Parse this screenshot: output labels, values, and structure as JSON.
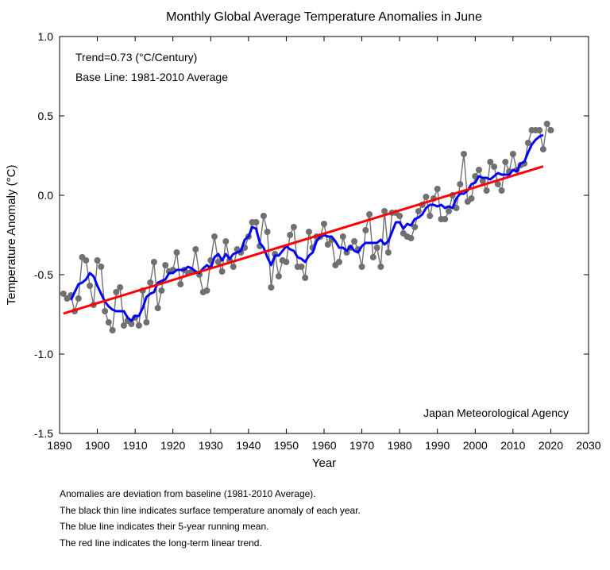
{
  "chart_data": {
    "type": "line",
    "title": "Monthly Global Average Temperature Anomalies in June",
    "xlabel": "Year",
    "ylabel": "Temperature Anomaly (°C)",
    "xlim": [
      1890,
      2030
    ],
    "ylim": [
      -1.5,
      1.0
    ],
    "x_ticks": [
      1890,
      1900,
      1910,
      1920,
      1930,
      1940,
      1950,
      1960,
      1970,
      1980,
      1990,
      2000,
      2010,
      2020,
      2030
    ],
    "y_ticks": [
      -1.5,
      -1.0,
      -0.5,
      0.0,
      0.5,
      1.0
    ],
    "x_tick_labels": [
      "1890",
      "1900",
      "1910",
      "1920",
      "1930",
      "1940",
      "1950",
      "1960",
      "1970",
      "1980",
      "1990",
      "2000",
      "2010",
      "2020",
      "2030"
    ],
    "y_tick_labels": [
      "-1.5",
      "-1.0",
      "-0.5",
      "0.0",
      "0.5",
      "1.0"
    ],
    "grid": false,
    "annotations": [
      "Trend=0.73 (°C/Century)",
      "Base Line: 1981-2010 Average"
    ],
    "source": "Japan Meteorological Agency",
    "colors": {
      "annual": "#707070",
      "running_mean": "#0000ff",
      "trend": "#ff0000"
    },
    "series": [
      {
        "x": [
          1891,
          1892,
          1893,
          1894,
          1895,
          1896,
          1897,
          1898,
          1899,
          1900,
          1901,
          1902,
          1903,
          1904,
          1905,
          1906,
          1907,
          1908,
          1909,
          1910,
          1911,
          1912,
          1913,
          1914,
          1915,
          1916,
          1917,
          1918,
          1919,
          1920,
          1921,
          1922,
          1923,
          1924,
          1925,
          1926,
          1927,
          1928,
          1929,
          1930,
          1931,
          1932,
          1933,
          1934,
          1935,
          1936,
          1937,
          1938,
          1939,
          1940,
          1941,
          1942,
          1943,
          1944,
          1945,
          1946,
          1947,
          1948,
          1949,
          1950,
          1951,
          1952,
          1953,
          1954,
          1955,
          1956,
          1957,
          1958,
          1959,
          1960,
          1961,
          1962,
          1963,
          1964,
          1965,
          1966,
          1967,
          1968,
          1969,
          1970,
          1971,
          1972,
          1973,
          1974,
          1975,
          1976,
          1977,
          1978,
          1979,
          1980,
          1981,
          1982,
          1983,
          1984,
          1985,
          1986,
          1987,
          1988,
          1989,
          1990,
          1991,
          1992,
          1993,
          1994,
          1995,
          1996,
          1997,
          1998,
          1999,
          2000,
          2001,
          2002,
          2003,
          2004,
          2005,
          2006,
          2007,
          2008,
          2009,
          2010,
          2011,
          2012,
          2013,
          2014,
          2015,
          2016,
          2017,
          2018,
          2019,
          2020
        ],
        "values": [
          -0.62,
          -0.65,
          -0.63,
          -0.73,
          -0.65,
          -0.39,
          -0.41,
          -0.57,
          -0.69,
          -0.41,
          -0.45,
          -0.73,
          -0.8,
          -0.85,
          -0.61,
          -0.58,
          -0.82,
          -0.79,
          -0.81,
          -0.77,
          -0.82,
          -0.6,
          -0.8,
          -0.55,
          -0.42,
          -0.71,
          -0.6,
          -0.44,
          -0.48,
          -0.47,
          -0.36,
          -0.56,
          -0.47,
          -0.49,
          -0.48,
          -0.34,
          -0.5,
          -0.61,
          -0.6,
          -0.41,
          -0.26,
          -0.42,
          -0.48,
          -0.29,
          -0.41,
          -0.45,
          -0.34,
          -0.36,
          -0.33,
          -0.26,
          -0.17,
          -0.17,
          -0.32,
          -0.13,
          -0.23,
          -0.58,
          -0.37,
          -0.51,
          -0.41,
          -0.42,
          -0.25,
          -0.2,
          -0.45,
          -0.45,
          -0.52,
          -0.23,
          -0.33,
          -0.26,
          -0.26,
          -0.18,
          -0.31,
          -0.28,
          -0.44,
          -0.42,
          -0.26,
          -0.36,
          -0.33,
          -0.29,
          -0.34,
          -0.45,
          -0.22,
          -0.12,
          -0.39,
          -0.33,
          -0.45,
          -0.1,
          -0.36,
          -0.11,
          -0.11,
          -0.13,
          -0.24,
          -0.26,
          -0.27,
          -0.2,
          -0.1,
          -0.06,
          -0.01,
          -0.13,
          -0.02,
          0.04,
          -0.15,
          -0.15,
          -0.1,
          0.0,
          -0.08,
          0.07,
          0.26,
          -0.04,
          -0.02,
          0.12,
          0.16,
          0.09,
          0.03,
          0.21,
          0.18,
          0.07,
          0.03,
          0.21,
          0.15,
          0.26,
          0.16,
          0.19,
          0.2,
          0.33,
          0.41,
          0.41,
          0.41,
          0.29,
          0.45,
          0.41
        ]
      },
      {
        "x": [
          1893,
          1894,
          1895,
          1896,
          1897,
          1898,
          1899,
          1900,
          1901,
          1902,
          1903,
          1904,
          1905,
          1906,
          1907,
          1908,
          1909,
          1910,
          1911,
          1912,
          1913,
          1914,
          1915,
          1916,
          1917,
          1918,
          1919,
          1920,
          1921,
          1922,
          1923,
          1924,
          1925,
          1926,
          1927,
          1928,
          1929,
          1930,
          1931,
          1932,
          1933,
          1934,
          1935,
          1936,
          1937,
          1938,
          1939,
          1940,
          1941,
          1942,
          1943,
          1944,
          1945,
          1946,
          1947,
          1948,
          1949,
          1950,
          1951,
          1952,
          1953,
          1954,
          1955,
          1956,
          1957,
          1958,
          1959,
          1960,
          1961,
          1962,
          1963,
          1964,
          1965,
          1966,
          1967,
          1968,
          1969,
          1970,
          1971,
          1972,
          1973,
          1974,
          1975,
          1976,
          1977,
          1978,
          1979,
          1980,
          1981,
          1982,
          1983,
          1984,
          1985,
          1986,
          1987,
          1988,
          1989,
          1990,
          1991,
          1992,
          1993,
          1994,
          1995,
          1996,
          1997,
          1998,
          1999,
          2000,
          2001,
          2002,
          2003,
          2004,
          2005,
          2006,
          2007,
          2008,
          2009,
          2010,
          2011,
          2012,
          2013,
          2014,
          2015,
          2016,
          2017,
          2018
        ],
        "values": [
          -0.66,
          -0.61,
          -0.56,
          -0.55,
          -0.53,
          -0.49,
          -0.51,
          -0.57,
          -0.62,
          -0.67,
          -0.7,
          -0.72,
          -0.73,
          -0.73,
          -0.73,
          -0.77,
          -0.79,
          -0.76,
          -0.76,
          -0.71,
          -0.64,
          -0.62,
          -0.61,
          -0.55,
          -0.54,
          -0.53,
          -0.49,
          -0.49,
          -0.47,
          -0.47,
          -0.47,
          -0.45,
          -0.46,
          -0.48,
          -0.49,
          -0.46,
          -0.44,
          -0.46,
          -0.39,
          -0.37,
          -0.41,
          -0.37,
          -0.4,
          -0.37,
          -0.36,
          -0.35,
          -0.28,
          -0.26,
          -0.2,
          -0.21,
          -0.3,
          -0.33,
          -0.39,
          -0.44,
          -0.38,
          -0.38,
          -0.35,
          -0.32,
          -0.34,
          -0.35,
          -0.39,
          -0.4,
          -0.42,
          -0.38,
          -0.36,
          -0.29,
          -0.26,
          -0.25,
          -0.26,
          -0.26,
          -0.29,
          -0.33,
          -0.33,
          -0.35,
          -0.32,
          -0.35,
          -0.36,
          -0.32,
          -0.3,
          -0.3,
          -0.3,
          -0.3,
          -0.28,
          -0.31,
          -0.29,
          -0.23,
          -0.17,
          -0.17,
          -0.21,
          -0.18,
          -0.19,
          -0.15,
          -0.14,
          -0.12,
          -0.08,
          -0.06,
          -0.06,
          -0.07,
          -0.06,
          -0.08,
          -0.07,
          -0.08,
          -0.02,
          0.01,
          0.01,
          0.03,
          0.07,
          0.08,
          0.12,
          0.11,
          0.11,
          0.1,
          0.12,
          0.14,
          0.13,
          0.13,
          0.13,
          0.16,
          0.15,
          0.2,
          0.21,
          0.27,
          0.32,
          0.35,
          0.37,
          0.38
        ]
      },
      {
        "x": [
          1891,
          2018
        ],
        "values": [
          -0.745,
          0.182
        ]
      }
    ]
  }
}
